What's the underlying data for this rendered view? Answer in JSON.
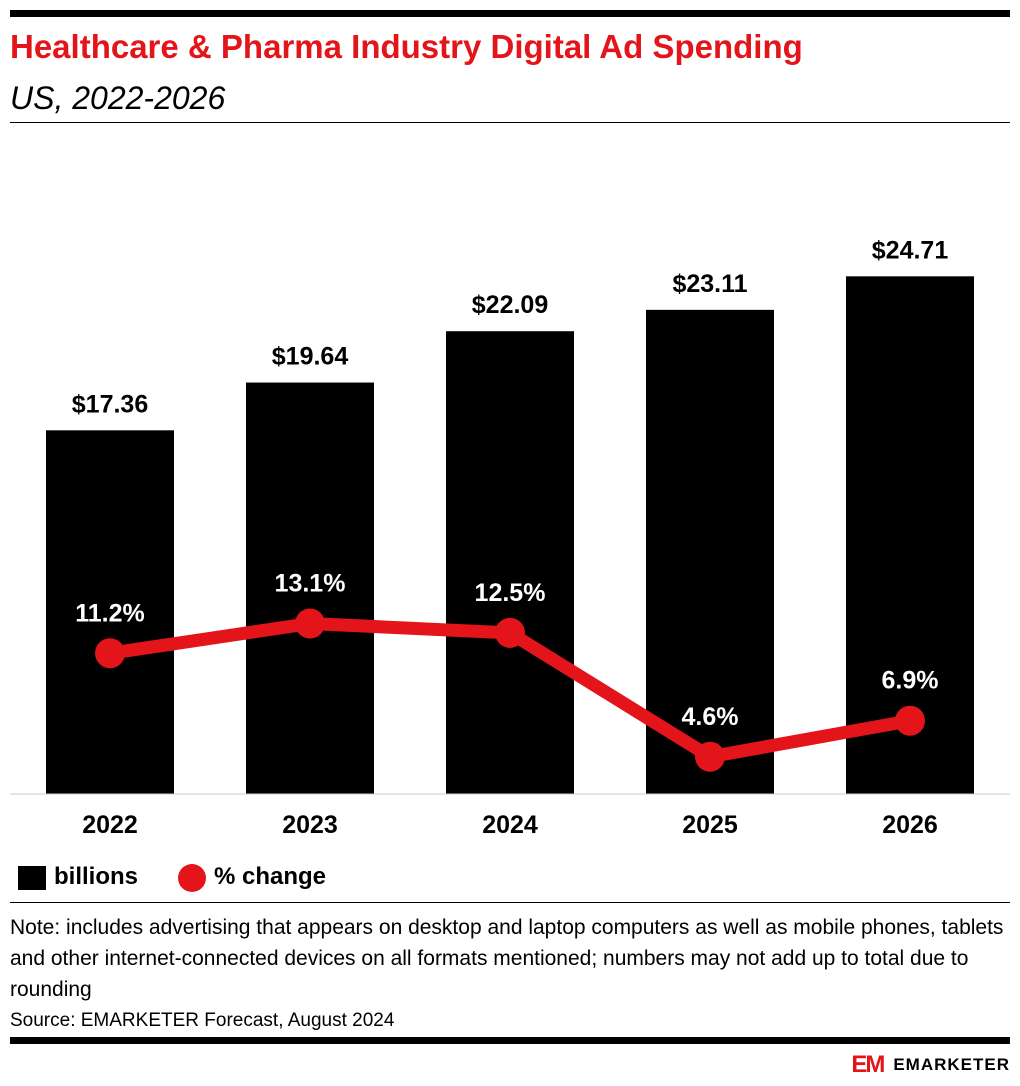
{
  "header": {
    "title": "Healthcare & Pharma Industry Digital Ad Spending",
    "subtitle": "US, 2022-2026"
  },
  "legend": {
    "bar_label": "billions",
    "line_label": "% change"
  },
  "footer": {
    "note": "Note: includes advertising that appears on desktop and laptop computers as well as mobile phones, tablets and other internet-connected devices on all formats mentioned; numbers may not add up to total due to rounding",
    "source": "Source: EMARKETER Forecast, August 2024",
    "brand_mark": "EM",
    "brand_name": "EMARKETER"
  },
  "colors": {
    "bar": "#000000",
    "line": "#e3151a",
    "title": "#e3151a"
  },
  "chart_data": {
    "type": "bar",
    "categories": [
      "2022",
      "2023",
      "2024",
      "2025",
      "2026"
    ],
    "series": [
      {
        "name": "billions",
        "type": "bar",
        "values": [
          17.36,
          19.64,
          22.09,
          23.11,
          24.71
        ],
        "labels": [
          "$17.36",
          "$19.64",
          "$22.09",
          "$23.11",
          "$24.71"
        ]
      },
      {
        "name": "% change",
        "type": "line",
        "values": [
          11.2,
          13.1,
          12.5,
          4.6,
          6.9
        ],
        "labels": [
          "11.2%",
          "13.1%",
          "12.5%",
          "4.6%",
          "6.9%"
        ]
      }
    ],
    "title": "Healthcare & Pharma Industry Digital Ad Spending",
    "xlabel": "",
    "ylabel": "",
    "grid": false,
    "legend_position": "bottom-left"
  }
}
